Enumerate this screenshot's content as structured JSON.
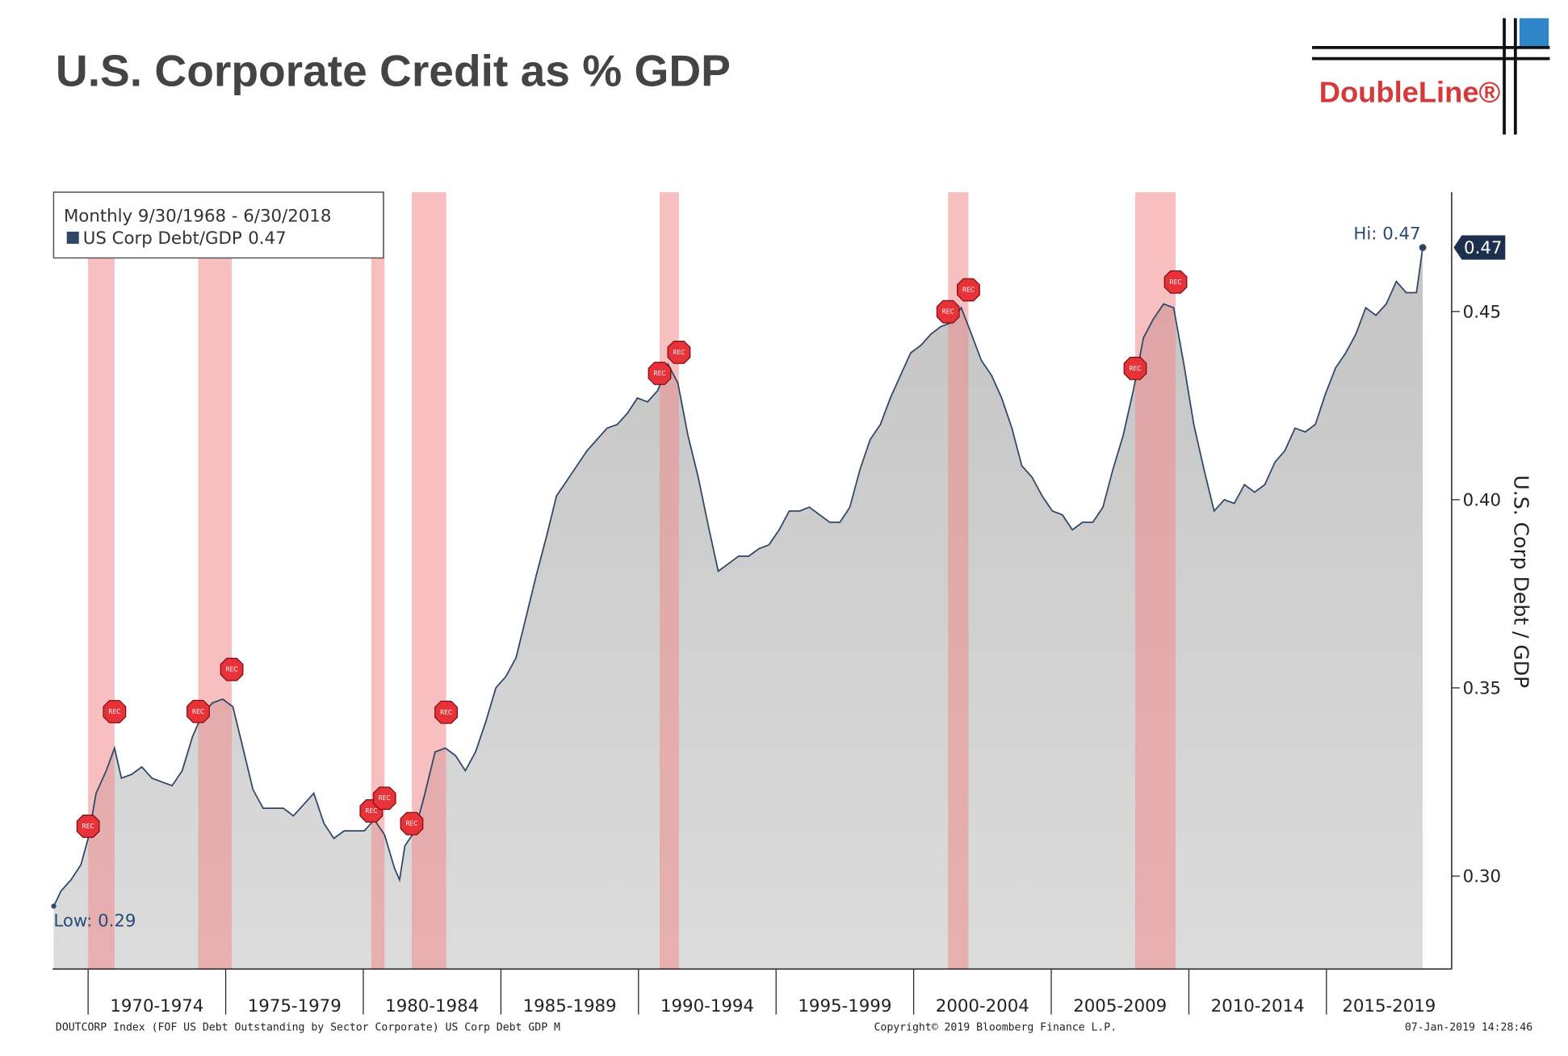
{
  "title": "U.S. Corporate Credit as % GDP",
  "logo": "DoubleLine®",
  "chart_data": {
    "type": "area",
    "legend_header": "Monthly 9/30/1968 - 6/30/2018",
    "last_value_label": "0.47",
    "high_label": "Hi: 0.47",
    "low_label": "Low: 0.29",
    "recession_marker_label": "REC",
    "ylabel": "U.S. Corp Debt / GDP",
    "xlim": [
      1968.71,
      2019.55
    ],
    "xticks": [
      1970,
      1975,
      1980,
      1985,
      1990,
      1995,
      2000,
      2005,
      2010,
      2015
    ],
    "period_labels": [
      "1970-1974",
      "1975-1979",
      "1980-1984",
      "1985-1989",
      "1990-1994",
      "1995-1999",
      "2000-2004",
      "2005-2009",
      "2010-2014",
      "2015-2019"
    ],
    "ylim": [
      0.2753,
      0.4817
    ],
    "yticks": [
      {
        "value": 0.3,
        "label": "0.30"
      },
      {
        "value": 0.35,
        "label": "0.35"
      },
      {
        "value": 0.4,
        "label": "0.40"
      },
      {
        "value": 0.45,
        "label": "0.45"
      }
    ],
    "recessions": [
      [
        1970.0,
        1970.96
      ],
      [
        1974.0,
        1975.22
      ],
      [
        1980.29,
        1980.77
      ],
      [
        1981.76,
        1983.01
      ],
      [
        1990.77,
        1991.47
      ],
      [
        2001.25,
        2001.99
      ],
      [
        2008.05,
        2009.52
      ]
    ],
    "recession_color": "#f08a8a",
    "series": [
      {
        "name": "US Corp Debt/GDP",
        "color": "#2f4766",
        "fill": "#c4c4c4",
        "x": [
          1968.75,
          1969.01,
          1969.38,
          1969.74,
          1970.0,
          1970.29,
          1970.66,
          1970.96,
          1971.21,
          1971.58,
          1971.95,
          1972.32,
          1972.68,
          1973.05,
          1973.42,
          1973.79,
          1974.15,
          1974.52,
          1974.89,
          1975.26,
          1975.63,
          1975.99,
          1976.36,
          1976.73,
          1977.1,
          1977.46,
          1977.83,
          1978.2,
          1978.57,
          1978.93,
          1979.3,
          1979.67,
          1980.04,
          1980.4,
          1980.77,
          1981.14,
          1981.32,
          1981.51,
          1981.88,
          1982.24,
          1982.61,
          1982.98,
          1983.35,
          1983.71,
          1984.08,
          1984.45,
          1984.82,
          1985.18,
          1985.55,
          1985.92,
          1986.29,
          1986.65,
          1987.02,
          1987.39,
          1987.76,
          1988.13,
          1988.49,
          1988.86,
          1989.23,
          1989.6,
          1989.96,
          1990.33,
          1990.7,
          1991.07,
          1991.43,
          1991.8,
          1992.17,
          1992.54,
          1992.9,
          1993.27,
          1993.64,
          1994.01,
          1994.38,
          1994.74,
          1995.11,
          1995.48,
          1995.85,
          1996.21,
          1996.58,
          1996.95,
          1997.32,
          1997.68,
          1998.05,
          1998.42,
          1998.79,
          1999.15,
          1999.52,
          1999.89,
          2000.26,
          2000.63,
          2000.99,
          2001.36,
          2001.73,
          2002.1,
          2002.46,
          2002.83,
          2003.2,
          2003.57,
          2003.93,
          2004.3,
          2004.67,
          2005.04,
          2005.4,
          2005.77,
          2006.14,
          2006.51,
          2006.88,
          2007.24,
          2007.61,
          2007.98,
          2008.35,
          2008.71,
          2009.08,
          2009.45,
          2009.82,
          2010.18,
          2010.55,
          2010.92,
          2011.29,
          2011.65,
          2012.02,
          2012.39,
          2012.76,
          2013.13,
          2013.49,
          2013.86,
          2014.23,
          2014.6,
          2014.96,
          2015.33,
          2015.7,
          2016.07,
          2016.43,
          2016.8,
          2017.17,
          2017.54,
          2017.9,
          2018.27,
          2018.5
        ],
        "values": [
          0.292,
          0.296,
          0.299,
          0.303,
          0.31,
          0.322,
          0.328,
          0.334,
          0.326,
          0.327,
          0.329,
          0.326,
          0.325,
          0.324,
          0.328,
          0.337,
          0.343,
          0.346,
          0.347,
          0.345,
          0.334,
          0.323,
          0.318,
          0.318,
          0.318,
          0.316,
          0.319,
          0.322,
          0.314,
          0.31,
          0.312,
          0.312,
          0.312,
          0.315,
          0.311,
          0.302,
          0.299,
          0.308,
          0.312,
          0.322,
          0.333,
          0.334,
          0.332,
          0.328,
          0.333,
          0.341,
          0.35,
          0.353,
          0.358,
          0.369,
          0.38,
          0.39,
          0.401,
          0.405,
          0.409,
          0.413,
          0.416,
          0.419,
          0.42,
          0.423,
          0.427,
          0.426,
          0.429,
          0.436,
          0.431,
          0.417,
          0.406,
          0.393,
          0.381,
          0.383,
          0.385,
          0.385,
          0.387,
          0.388,
          0.392,
          0.397,
          0.397,
          0.398,
          0.396,
          0.394,
          0.394,
          0.398,
          0.408,
          0.416,
          0.42,
          0.427,
          0.433,
          0.439,
          0.441,
          0.444,
          0.446,
          0.447,
          0.451,
          0.444,
          0.437,
          0.433,
          0.427,
          0.419,
          0.409,
          0.406,
          0.401,
          0.397,
          0.396,
          0.392,
          0.394,
          0.394,
          0.398,
          0.408,
          0.417,
          0.429,
          0.443,
          0.448,
          0.452,
          0.451,
          0.436,
          0.42,
          0.408,
          0.397,
          0.4,
          0.399,
          0.404,
          0.402,
          0.404,
          0.41,
          0.413,
          0.419,
          0.418,
          0.42,
          0.428,
          0.435,
          0.439,
          0.444,
          0.451,
          0.449,
          0.452,
          0.458,
          0.455,
          0.455,
          0.467
        ]
      }
    ]
  },
  "footer": {
    "source": "DOUTCORP Index (FOF US Debt Outstanding by Sector Corporate) US Corp Debt GDP  M",
    "copyright": "Copyright© 2019 Bloomberg Finance L.P.",
    "timestamp": "07-Jan-2019 14:28:46"
  }
}
